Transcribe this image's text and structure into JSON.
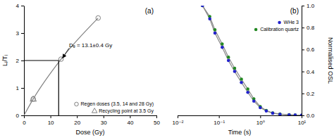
{
  "chart_data": [
    {
      "type": "scatter",
      "title": "(a)",
      "xlabel": "Dose (Gy)",
      "ylabel": "Lᵢ/Tᵢ",
      "xlim": [
        0,
        50
      ],
      "ylim": [
        0,
        4
      ],
      "xticks": [
        0,
        10,
        20,
        30,
        40,
        50
      ],
      "yticks": [
        0,
        1,
        2,
        3,
        4
      ],
      "legend": "lower right",
      "series": [
        {
          "name": "Regen doses (3.5, 14 and 28 Gy)",
          "type": "scatter",
          "marker": "circle",
          "color": "#808080",
          "x": [
            3.5,
            14,
            28
          ],
          "values": [
            0.6,
            2.05,
            3.55
          ]
        },
        {
          "name": "Recycling point at 3.5 Gy",
          "type": "scatter",
          "marker": "triangle",
          "color": "#808080",
          "x": [
            3.5
          ],
          "values": [
            0.58
          ]
        },
        {
          "type": "line",
          "line_style": "smooth",
          "color": "#808080",
          "x": [
            0,
            3.5,
            14,
            28
          ],
          "values": [
            0,
            0.6,
            2.05,
            3.55
          ]
        },
        {
          "type": "line",
          "line_style": "solid",
          "color": "#000000",
          "x": [
            0,
            13.1,
            13.1
          ],
          "values": [
            2.0,
            2.0,
            0
          ]
        }
      ],
      "annotations": [
        {
          "text": "Dₑ = 13.1±0.4 Gy",
          "x": 17,
          "y": 2.45,
          "arrow_x": 14.5,
          "arrow_y": 2.08
        }
      ]
    },
    {
      "type": "line",
      "title": "(b)",
      "xlabel": "Time (s)",
      "ylabel": "Normalised OSL",
      "log": "x",
      "color": "#888888",
      "xlim": [
        0.01,
        10
      ],
      "ylim": [
        0.0,
        1.0
      ],
      "xticks": [
        {
          "value": 0.01,
          "label": "10⁻²"
        },
        {
          "value": 0.1,
          "label": "10⁻¹"
        },
        {
          "value": 1,
          "label": "10⁰"
        },
        {
          "value": 10,
          "label": "10¹"
        }
      ],
      "yticks": [
        {
          "value": 0.0,
          "label": "0.0"
        },
        {
          "value": 0.2,
          "label": "0.2"
        },
        {
          "value": 0.4,
          "label": "0.4"
        },
        {
          "value": 0.6,
          "label": "0.6"
        },
        {
          "value": 0.8,
          "label": "0.8"
        },
        {
          "value": 1.0,
          "label": "1.0"
        }
      ],
      "legend": "upper right",
      "series": [
        {
          "name": "WHe 3",
          "marker": "circle",
          "color": "#2222cc",
          "x": [
            0.04,
            0.06,
            0.08,
            0.12,
            0.17,
            0.24,
            0.35,
            0.5,
            0.7,
            1.0,
            1.4,
            2.0,
            3.0,
            5.0,
            7.0,
            10.0
          ],
          "values": [
            1.0,
            0.88,
            0.75,
            0.62,
            0.5,
            0.4,
            0.3,
            0.21,
            0.13,
            0.07,
            0.04,
            0.02,
            0.01,
            0.005,
            0.003,
            0.002
          ]
        },
        {
          "name": "Calibration quartz",
          "marker": "circle",
          "color": "#228822",
          "x": [
            0.04,
            0.06,
            0.08,
            0.12,
            0.17,
            0.24,
            0.35,
            0.5,
            0.7,
            1.0,
            1.4,
            2.0,
            3.0,
            5.0,
            7.0,
            10.0
          ],
          "values": [
            1.0,
            0.9,
            0.78,
            0.65,
            0.53,
            0.43,
            0.33,
            0.24,
            0.15,
            0.08,
            0.045,
            0.022,
            0.012,
            0.006,
            0.003,
            0.002
          ]
        }
      ]
    }
  ]
}
